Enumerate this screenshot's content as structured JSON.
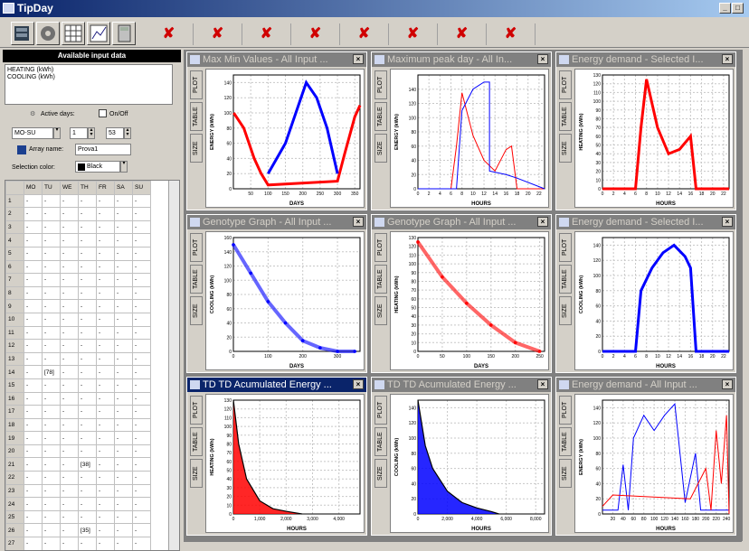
{
  "app": {
    "title": "TipDay",
    "min": "_",
    "max": "□",
    "close": "×"
  },
  "toolbar": {
    "marks": [
      "✘",
      "✘",
      "✘",
      "✘",
      "✘",
      "✘",
      "✘",
      "✘"
    ]
  },
  "left": {
    "header": "Available input data",
    "inputs": [
      "HEATING (kWh)",
      "COOLING (kWh)"
    ],
    "active_days_label": "Active days:",
    "onoff_label": "On/Off",
    "day_range": "MO-SU",
    "from_value": "1",
    "to_value": "53",
    "array_name_label": "Array name:",
    "array_name": "Prova1",
    "selection_color_label": "Selection color:",
    "selection_color": "Black",
    "grid_headers": [
      "",
      "MO",
      "TU",
      "WE",
      "TH",
      "FR",
      "SA",
      "SU"
    ],
    "grid_rows": [
      [
        "1",
        "-",
        "-",
        "-",
        "-",
        "-",
        "-",
        "-"
      ],
      [
        "2",
        "-",
        "-",
        "-",
        "-",
        "-",
        "-",
        "-"
      ],
      [
        "3",
        "-",
        "-",
        "-",
        "-",
        "-",
        "-",
        "-"
      ],
      [
        "4",
        "-",
        "-",
        "-",
        "-",
        "-",
        "-",
        "-"
      ],
      [
        "5",
        "-",
        "-",
        "-",
        "-",
        "-",
        "-",
        "-"
      ],
      [
        "6",
        "-",
        "-",
        "-",
        "-",
        "-",
        "-",
        "-"
      ],
      [
        "7",
        "-",
        "-",
        "-",
        "-",
        "-",
        "-",
        "-"
      ],
      [
        "8",
        "-",
        "-",
        "-",
        "-",
        "-",
        "-",
        "-"
      ],
      [
        "9",
        "-",
        "-",
        "-",
        "-",
        "-",
        "-",
        "-"
      ],
      [
        "10",
        "-",
        "-",
        "-",
        "-",
        "-",
        "-",
        "-"
      ],
      [
        "11",
        "-",
        "-",
        "-",
        "-",
        "-",
        "-",
        "-"
      ],
      [
        "12",
        "-",
        "-",
        "-",
        "-",
        "-",
        "-",
        "-"
      ],
      [
        "13",
        "-",
        "-",
        "-",
        "-",
        "-",
        "-",
        "-"
      ],
      [
        "14",
        "-",
        "[78]",
        "-",
        "-",
        "-",
        "-",
        "-"
      ],
      [
        "15",
        "-",
        "-",
        "-",
        "-",
        "-",
        "-",
        "-"
      ],
      [
        "16",
        "-",
        "-",
        "-",
        "-",
        "-",
        "-",
        "-"
      ],
      [
        "17",
        "-",
        "-",
        "-",
        "-",
        "-",
        "-",
        "-"
      ],
      [
        "18",
        "-",
        "-",
        "-",
        "-",
        "-",
        "-",
        "-"
      ],
      [
        "19",
        "-",
        "-",
        "-",
        "-",
        "-",
        "-",
        "-"
      ],
      [
        "20",
        "-",
        "-",
        "-",
        "-",
        "-",
        "-",
        "-"
      ],
      [
        "21",
        "-",
        "-",
        "-",
        "[38]",
        "-",
        "-",
        "-"
      ],
      [
        "22",
        "-",
        "-",
        "-",
        "-",
        "-",
        "-",
        "-"
      ],
      [
        "23",
        "-",
        "-",
        "-",
        "-",
        "-",
        "-",
        "-"
      ],
      [
        "24",
        "-",
        "-",
        "-",
        "-",
        "-",
        "-",
        "-"
      ],
      [
        "25",
        "-",
        "-",
        "-",
        "-",
        "-",
        "-",
        "-"
      ],
      [
        "26",
        "-",
        "-",
        "-",
        "[35]",
        "-",
        "-",
        "-"
      ],
      [
        "27",
        "-",
        "-",
        "-",
        "-",
        "-",
        "-",
        "-"
      ]
    ]
  },
  "tabs": [
    "PLOT",
    "TABLE",
    "SIZE"
  ],
  "windows": [
    {
      "title": "Max Min Values - All Input ...",
      "active": false
    },
    {
      "title": "Maximum peak day - All In...",
      "active": false
    },
    {
      "title": "Energy demand - Selected I...",
      "active": false
    },
    {
      "title": "Genotype Graph - All Input ...",
      "active": false
    },
    {
      "title": "Genotype Graph - All Input ...",
      "active": false
    },
    {
      "title": "Energy demand - Selected I...",
      "active": false
    },
    {
      "title": "TD TD Acumulated Energy ...",
      "active": true
    },
    {
      "title": "TD TD Acumulated Energy ...",
      "active": false
    },
    {
      "title": "Energy demand - All Input ...",
      "active": false
    }
  ],
  "colors": {
    "heating": "#ff0000",
    "cooling": "#0000ff",
    "accent": "#0a246a"
  },
  "chart_data": [
    {
      "type": "line",
      "ylabel": "ENERGY (kWh)",
      "xlabel": "DAYS",
      "xticks": [
        "50",
        "100",
        "150",
        "200",
        "250",
        "300",
        "350"
      ],
      "yticks": [
        "0",
        "20",
        "40",
        "60",
        "80",
        "100",
        "120",
        "140"
      ],
      "xlim": [
        0,
        365
      ],
      "ylim": [
        0,
        150
      ],
      "series": [
        {
          "name": "HEATING",
          "values": [
            [
              1,
              100
            ],
            [
              30,
              80
            ],
            [
              60,
              40
            ],
            [
              80,
              20
            ],
            [
              100,
              5
            ],
            [
              300,
              10
            ],
            [
              320,
              45
            ],
            [
              350,
              95
            ],
            [
              365,
              110
            ]
          ]
        },
        {
          "name": "COOLING",
          "values": [
            [
              100,
              20
            ],
            [
              150,
              60
            ],
            [
              180,
              100
            ],
            [
              210,
              140
            ],
            [
              240,
              120
            ],
            [
              270,
              80
            ],
            [
              300,
              20
            ]
          ]
        }
      ]
    },
    {
      "type": "line",
      "ylabel": "ENERGY (kWh)",
      "xlabel": "HOURS",
      "xticks": [
        "0",
        "2",
        "4",
        "6",
        "8",
        "10",
        "12",
        "14",
        "16",
        "18",
        "20",
        "22"
      ],
      "yticks": [
        "0",
        "20",
        "40",
        "60",
        "80",
        "100",
        "120",
        "140"
      ],
      "xlim": [
        0,
        23
      ],
      "ylim": [
        0,
        160
      ],
      "series": [
        {
          "name": "HEATING",
          "values": [
            [
              0,
              0
            ],
            [
              6,
              0
            ],
            [
              7,
              60
            ],
            [
              8,
              135
            ],
            [
              10,
              75
            ],
            [
              12,
              40
            ],
            [
              14,
              25
            ],
            [
              16,
              55
            ],
            [
              17,
              60
            ],
            [
              18,
              0
            ],
            [
              23,
              0
            ]
          ]
        },
        {
          "name": "COOLING",
          "values": [
            [
              0,
              0
            ],
            [
              7,
              0
            ],
            [
              8,
              110
            ],
            [
              10,
              140
            ],
            [
              12,
              150
            ],
            [
              13,
              150
            ],
            [
              13,
              25
            ],
            [
              16,
              20
            ],
            [
              18,
              15
            ],
            [
              23,
              0
            ]
          ]
        }
      ]
    },
    {
      "type": "line",
      "ylabel": "HEATING (kWh)",
      "xlabel": "HOURS",
      "xticks": [
        "0",
        "2",
        "4",
        "6",
        "8",
        "10",
        "12",
        "14",
        "16",
        "18",
        "20",
        "22"
      ],
      "yticks": [
        "0",
        "10",
        "20",
        "30",
        "40",
        "50",
        "60",
        "70",
        "80",
        "90",
        "100",
        "110",
        "120",
        "130"
      ],
      "xlim": [
        0,
        23
      ],
      "ylim": [
        0,
        130
      ],
      "series": [
        {
          "name": "HEATING",
          "values": [
            [
              0,
              0
            ],
            [
              6,
              0
            ],
            [
              7,
              70
            ],
            [
              8,
              125
            ],
            [
              10,
              70
            ],
            [
              12,
              40
            ],
            [
              14,
              45
            ],
            [
              16,
              60
            ],
            [
              17,
              0
            ],
            [
              23,
              0
            ]
          ]
        }
      ]
    },
    {
      "type": "scatter",
      "ylabel": "COOLING (kWh)",
      "xlabel": "DAYS",
      "xticks": [
        "0",
        "100",
        "200",
        "300"
      ],
      "yticks": [
        "0",
        "20",
        "40",
        "60",
        "80",
        "100",
        "120",
        "140",
        "160"
      ],
      "xlim": [
        0,
        365
      ],
      "ylim": [
        0,
        160
      ],
      "series": [
        {
          "name": "COOLING",
          "values": [
            [
              0,
              150
            ],
            [
              50,
              110
            ],
            [
              100,
              70
            ],
            [
              150,
              40
            ],
            [
              200,
              15
            ],
            [
              250,
              5
            ],
            [
              300,
              0
            ],
            [
              350,
              0
            ]
          ]
        }
      ]
    },
    {
      "type": "scatter",
      "ylabel": "HEATING (kWh)",
      "xlabel": "DAYS",
      "xticks": [
        "0",
        "50",
        "100",
        "150",
        "200",
        "250"
      ],
      "yticks": [
        "0",
        "10",
        "20",
        "30",
        "40",
        "50",
        "60",
        "70",
        "80",
        "90",
        "100",
        "110",
        "120",
        "130"
      ],
      "xlim": [
        0,
        260
      ],
      "ylim": [
        0,
        130
      ],
      "series": [
        {
          "name": "HEATING",
          "values": [
            [
              0,
              125
            ],
            [
              50,
              85
            ],
            [
              100,
              55
            ],
            [
              150,
              30
            ],
            [
              200,
              10
            ],
            [
              250,
              0
            ]
          ]
        }
      ]
    },
    {
      "type": "line",
      "ylabel": "COOLING (kWh)",
      "xlabel": "HOURS",
      "xticks": [
        "0",
        "2",
        "4",
        "6",
        "8",
        "10",
        "12",
        "14",
        "16",
        "18",
        "20",
        "22"
      ],
      "yticks": [
        "0",
        "20",
        "40",
        "60",
        "80",
        "100",
        "120",
        "140"
      ],
      "xlim": [
        0,
        23
      ],
      "ylim": [
        0,
        150
      ],
      "series": [
        {
          "name": "COOLING",
          "values": [
            [
              0,
              0
            ],
            [
              6,
              0
            ],
            [
              7,
              80
            ],
            [
              9,
              110
            ],
            [
              11,
              130
            ],
            [
              13,
              140
            ],
            [
              15,
              125
            ],
            [
              16,
              110
            ],
            [
              17,
              0
            ],
            [
              23,
              0
            ]
          ]
        }
      ]
    },
    {
      "type": "area",
      "ylabel": "HEATING (kWh)",
      "xlabel": "HOURS",
      "xticks": [
        "0",
        "1,000",
        "2,000",
        "3,000",
        "4,000"
      ],
      "yticks": [
        "0",
        "10",
        "20",
        "30",
        "40",
        "50",
        "60",
        "70",
        "80",
        "90",
        "100",
        "110",
        "120",
        "130"
      ],
      "xlim": [
        0,
        4800
      ],
      "ylim": [
        0,
        130
      ],
      "series": [
        {
          "name": "HEATING",
          "values": [
            [
              0,
              130
            ],
            [
              200,
              80
            ],
            [
              500,
              40
            ],
            [
              1000,
              15
            ],
            [
              1500,
              6
            ],
            [
              2000,
              3
            ],
            [
              2600,
              0
            ]
          ]
        }
      ]
    },
    {
      "type": "area",
      "ylabel": "COOLING (kWh)",
      "xlabel": "HOURS",
      "xticks": [
        "0",
        "2,000",
        "4,000",
        "6,000",
        "8,000"
      ],
      "yticks": [
        "0",
        "20",
        "40",
        "60",
        "80",
        "100",
        "120",
        "140"
      ],
      "xlim": [
        0,
        8600
      ],
      "ylim": [
        0,
        150
      ],
      "series": [
        {
          "name": "COOLING",
          "values": [
            [
              0,
              150
            ],
            [
              500,
              90
            ],
            [
              1000,
              60
            ],
            [
              2000,
              30
            ],
            [
              3000,
              15
            ],
            [
              4000,
              8
            ],
            [
              5000,
              3
            ],
            [
              5500,
              0
            ]
          ]
        }
      ]
    },
    {
      "type": "line",
      "ylabel": "ENERGY (kWh)",
      "xlabel": "HOURS",
      "xticks": [
        "20",
        "40",
        "60",
        "80",
        "100",
        "120",
        "140",
        "160",
        "180",
        "200",
        "220",
        "240"
      ],
      "yticks": [
        "0",
        "20",
        "40",
        "60",
        "80",
        "100",
        "120",
        "140"
      ],
      "xlim": [
        0,
        245
      ],
      "ylim": [
        0,
        150
      ],
      "series": [
        {
          "name": "COOLING",
          "values": [
            [
              0,
              5
            ],
            [
              30,
              5
            ],
            [
              40,
              65
            ],
            [
              50,
              5
            ],
            [
              60,
              100
            ],
            [
              80,
              130
            ],
            [
              100,
              110
            ],
            [
              120,
              130
            ],
            [
              140,
              145
            ],
            [
              160,
              15
            ],
            [
              180,
              80
            ],
            [
              190,
              5
            ],
            [
              245,
              5
            ]
          ]
        },
        {
          "name": "HEATING",
          "values": [
            [
              0,
              10
            ],
            [
              20,
              25
            ],
            [
              170,
              20
            ],
            [
              200,
              60
            ],
            [
              210,
              5
            ],
            [
              220,
              110
            ],
            [
              230,
              40
            ],
            [
              240,
              130
            ],
            [
              245,
              0
            ]
          ]
        }
      ]
    }
  ]
}
